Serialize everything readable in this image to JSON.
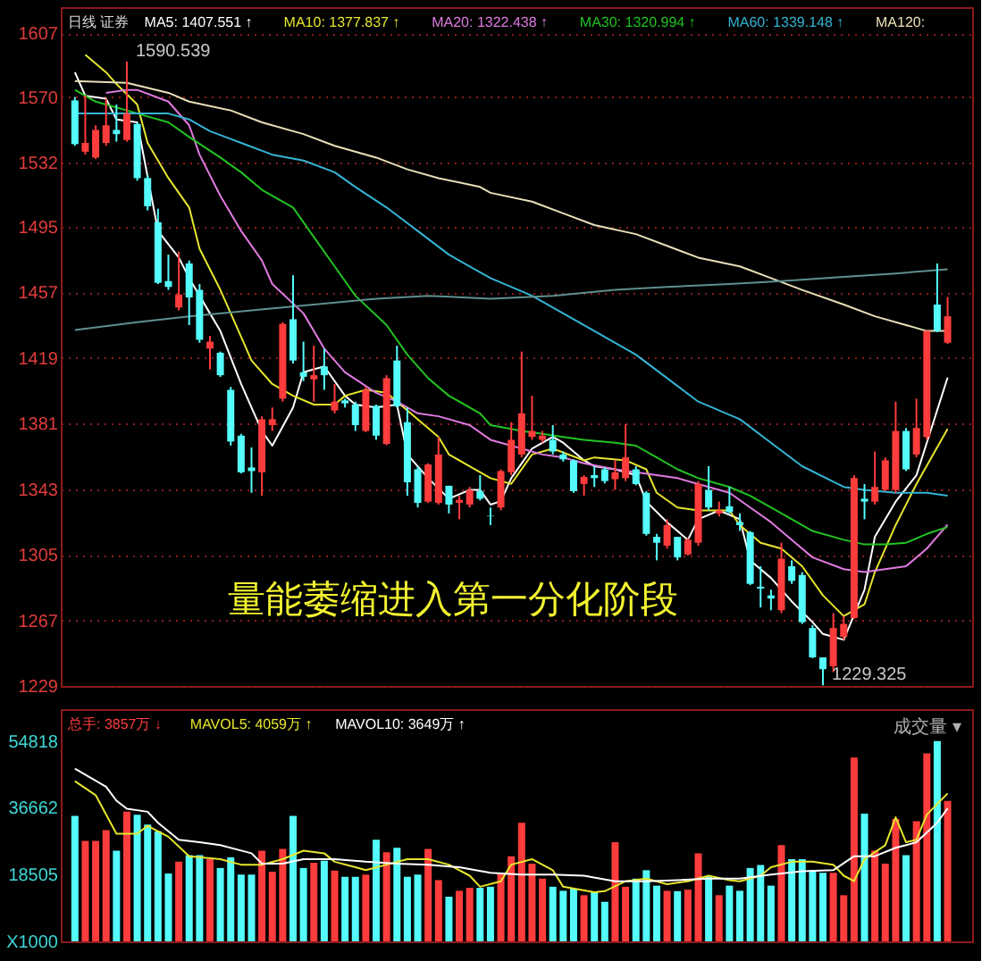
{
  "chart_data": [
    {
      "type": "candlestick",
      "title": "日线 证券",
      "grid": "y",
      "tick_labels": "y",
      "ylim": [
        1229,
        1622
      ],
      "yticks": [
        1229,
        1267,
        1305,
        1343,
        1381,
        1419,
        1457,
        1495,
        1532,
        1570,
        1607
      ],
      "categories": [
        null,
        null,
        null,
        null,
        null,
        null,
        null,
        null,
        null,
        null,
        null,
        null,
        null,
        null,
        null,
        null,
        null,
        null,
        null,
        null,
        null,
        null,
        null,
        null,
        null,
        null,
        null,
        null,
        null,
        null,
        null,
        null,
        null,
        null,
        null,
        null,
        null,
        null,
        null,
        null,
        null,
        null,
        null,
        null,
        null,
        null,
        null,
        null,
        null,
        null,
        null,
        null,
        null,
        null,
        null,
        null,
        null,
        null,
        null,
        null,
        null,
        null,
        null,
        null,
        null,
        null,
        null,
        null,
        null,
        null,
        null,
        null,
        null,
        null,
        null,
        null,
        null,
        null,
        null,
        null,
        null,
        null,
        null,
        null,
        null
      ],
      "ohlc": [
        [
          1568,
          1570,
          1541.7,
          1542.7
        ],
        [
          1538.3,
          1570.7,
          1536.6,
          1543.4
        ],
        [
          1534.9,
          1553.6,
          1534,
          1550.9
        ],
        [
          1543.4,
          1569,
          1541.7,
          1553.6
        ],
        [
          1550.9,
          1565.6,
          1544.1,
          1548.5
        ],
        [
          1545.1,
          1590.539,
          1544.1,
          1560.4
        ],
        [
          1554.3,
          1555.3,
          1521.5,
          1523
        ],
        [
          1523,
          1524.7,
          1504.3,
          1506.7
        ],
        [
          1497.5,
          1505.3,
          1461.7,
          1462.4
        ],
        [
          1463.4,
          1478.7,
          1458.3,
          1460
        ],
        [
          1448.1,
          1480.4,
          1446.4,
          1455.6
        ],
        [
          1473.6,
          1475.3,
          1437.9,
          1453.9
        ],
        [
          1458.3,
          1461.7,
          1427.7,
          1429.4
        ],
        [
          1424.3,
          1431.7,
          1412.3,
          1428.3
        ],
        [
          1421.9,
          1422.6,
          1407.9,
          1408.9
        ],
        [
          1400.4,
          1402.1,
          1368.1,
          1370.5
        ],
        [
          1373.9,
          1374.9,
          1352,
          1352.7
        ],
        [
          1355.5,
          1367.1,
          1340.8,
          1353.4
        ],
        [
          1352.7,
          1385.1,
          1339.1,
          1383.4
        ],
        [
          1380,
          1390.2,
          1376.6,
          1383.4
        ],
        [
          1395.3,
          1439.6,
          1393.6,
          1438.6
        ],
        [
          1441.3,
          1466.8,
          1415.7,
          1417.4
        ],
        [
          1410.6,
          1428.3,
          1405.5,
          1408
        ],
        [
          1406.5,
          1426,
          1393.6,
          1408.9
        ],
        [
          1414,
          1424.3,
          1400.4,
          1408.9
        ],
        [
          1388.5,
          1403.8,
          1386.8,
          1393.6
        ],
        [
          1394.3,
          1395.3,
          1390.2,
          1392.6
        ],
        [
          1391.9,
          1393.6,
          1376.6,
          1380
        ],
        [
          1376.6,
          1402.1,
          1375.9,
          1400.4
        ],
        [
          1391.2,
          1391.9,
          1371.5,
          1373.9
        ],
        [
          1369.1,
          1408.9,
          1368.4,
          1407.2
        ],
        [
          1417.4,
          1426,
          1390.2,
          1390.9
        ],
        [
          1381.7,
          1390.2,
          1339.1,
          1346.9
        ],
        [
          1354.4,
          1356.2,
          1332.3,
          1335
        ],
        [
          1335.7,
          1357.9,
          1335,
          1357.2
        ],
        [
          1335,
          1373.2,
          1334,
          1363
        ],
        [
          1344.9,
          1344.9,
          1328.9,
          1334
        ],
        [
          1335,
          1339.1,
          1325.5,
          1336.7
        ],
        [
          1334,
          1344.2,
          1332.3,
          1342.5
        ],
        [
          1341.8,
          1351,
          1336.4,
          1337.4
        ],
        [
          1327.5,
          1332.3,
          1322.1,
          1327.2
        ],
        [
          1332.3,
          1354.4,
          1330.6,
          1353.4
        ],
        [
          1352.7,
          1381.7,
          1351,
          1371.5
        ],
        [
          1363,
          1422.6,
          1361.3,
          1386.8
        ],
        [
          1373.2,
          1397,
          1371.5,
          1376.6
        ],
        [
          1371.5,
          1376.6,
          1369.8,
          1373.9
        ],
        [
          1371.5,
          1380,
          1363,
          1364.7
        ],
        [
          1363,
          1364.7,
          1358.9,
          1360.2
        ],
        [
          1359.6,
          1360.2,
          1340.8,
          1341.8
        ],
        [
          1345.9,
          1351,
          1339.1,
          1350
        ],
        [
          1351,
          1356.2,
          1344.2,
          1349.3
        ],
        [
          1354.4,
          1355.5,
          1346.2,
          1347.6
        ],
        [
          1348.7,
          1359.6,
          1342.5,
          1352.7
        ],
        [
          1349.3,
          1380.7,
          1347.6,
          1361.3
        ],
        [
          1354.4,
          1356.2,
          1345.2,
          1345.9
        ],
        [
          1340.8,
          1341.8,
          1316,
          1317
        ],
        [
          1315.3,
          1317,
          1301.7,
          1311.9
        ],
        [
          1310.2,
          1325.5,
          1308.5,
          1322.1
        ],
        [
          1315.3,
          1315.3,
          1301.7,
          1303.4
        ],
        [
          1305.1,
          1314.6,
          1304.4,
          1313.6
        ],
        [
          1311.9,
          1347.6,
          1310.2,
          1345.9
        ],
        [
          1342.5,
          1356.2,
          1330.6,
          1332.3
        ],
        [
          1328.9,
          1335.7,
          1327.2,
          1330.6
        ],
        [
          1333,
          1344.2,
          1328.9,
          1329.6
        ],
        [
          1323.8,
          1328.9,
          1318.7,
          1322.1
        ],
        [
          1318,
          1318.7,
          1287.4,
          1288.1
        ],
        [
          1286.4,
          1298.3,
          1274.4,
          1285.4
        ],
        [
          1281.4,
          1284.7,
          1272.8,
          1279.6
        ],
        [
          1272.8,
          1311.9,
          1271.1,
          1302.7
        ],
        [
          1298.3,
          1301.7,
          1288.1,
          1289.8
        ],
        [
          1293.2,
          1294.9,
          1264.9,
          1265.9
        ],
        [
          1262.5,
          1264.2,
          1245.1,
          1245.5
        ],
        [
          1245.5,
          1245.5,
          1229.325,
          1238.7
        ],
        [
          1240.4,
          1271.1,
          1237,
          1262.5
        ],
        [
          1257.4,
          1269.4,
          1255.7,
          1264.9
        ],
        [
          1268.3,
          1351,
          1267.7,
          1349.3
        ],
        [
          1337.4,
          1345.9,
          1325.5,
          1335.7
        ],
        [
          1335.7,
          1364.7,
          1334,
          1344.2
        ],
        [
          1342.5,
          1361.3,
          1341.8,
          1359.6
        ],
        [
          1342.5,
          1393.6,
          1340.8,
          1376.6
        ],
        [
          1376.6,
          1378.3,
          1353.4,
          1354.4
        ],
        [
          1363,
          1395.3,
          1361.3,
          1378.3
        ],
        [
          1373.2,
          1434.5,
          1371.5,
          1434.5
        ],
        [
          1449.8,
          1473.6,
          1433.8,
          1434.5
        ],
        [
          1427.7,
          1454.2,
          1427,
          1443
        ]
      ],
      "colors": [
        "#54fcfc",
        "#ff3c3c",
        "#ff3c3c",
        "#ff3c3c",
        "#54fcfc",
        "#ff3c3c",
        "#54fcfc",
        "#54fcfc",
        "#54fcfc",
        "#54fcfc",
        "#ff3c3c",
        "#54fcfc",
        "#54fcfc",
        "#ff3c3c",
        "#54fcfc",
        "#54fcfc",
        "#54fcfc",
        "#54fcfc",
        "#ff3c3c",
        "#ff3c3c",
        "#ff3c3c",
        "#54fcfc",
        "#54fcfc",
        "#ff3c3c",
        "#54fcfc",
        "#ff3c3c",
        "#54fcfc",
        "#54fcfc",
        "#ff3c3c",
        "#54fcfc",
        "#ff3c3c",
        "#54fcfc",
        "#54fcfc",
        "#54fcfc",
        "#ff3c3c",
        "#ff3c3c",
        "#54fcfc",
        "#ff3c3c",
        "#ff3c3c",
        "#54fcfc",
        "#54fcfc",
        "#ff3c3c",
        "#ff3c3c",
        "#ff3c3c",
        "#ff3c3c",
        "#ff3c3c",
        "#54fcfc",
        "#54fcfc",
        "#54fcfc",
        "#ff3c3c",
        "#54fcfc",
        "#54fcfc",
        "#ff3c3c",
        "#ff3c3c",
        "#54fcfc",
        "#54fcfc",
        "#54fcfc",
        "#ff3c3c",
        "#54fcfc",
        "#ff3c3c",
        "#ff3c3c",
        "#54fcfc",
        "#ff3c3c",
        "#54fcfc",
        "#54fcfc",
        "#54fcfc",
        "#54fcfc",
        "#54fcfc",
        "#ff3c3c",
        "#54fcfc",
        "#54fcfc",
        "#54fcfc",
        "#54fcfc",
        "#ff3c3c",
        "#ff3c3c",
        "#ff3c3c",
        "#54fcfc",
        "#ff3c3c",
        "#ff3c3c",
        "#ff3c3c",
        "#54fcfc",
        "#ff3c3c",
        "#ff3c3c",
        "#54fcfc",
        "#ff3c3c"
      ],
      "series": [
        {
          "name": "MA5: 1407.551 ↑",
          "type": "line",
          "color": "#ffffff",
          "values": [
            1584.3,
            1570.7,
            null,
            1569,
            1557,
            null,
            1555.3,
            null,
            1492.4,
            null,
            1477,
            1465.1,
            null,
            1444.7,
            1434.5,
            null,
            1403.8,
            null,
            1376.6,
            1368.1,
            null,
            1390.2,
            1410.6,
            null,
            1414,
            null,
            1397,
            1391.9,
            null,
            1390.2,
            null,
            1391.9,
            1363,
            null,
            1349.3,
            null,
            1337.4,
            null,
            1342.5,
            1342.5,
            1334,
            1336,
            1349.3,
            null,
            1366.4,
            null,
            1373.2,
            1369.8,
            null,
            1359.6,
            1356.2,
            null,
            1354.4,
            null,
            1351,
            1335.7,
            null,
            1323.8,
            null,
            1313.6,
            1325.5,
            null,
            1330.6,
            null,
            1325.5,
            1301.7,
            null,
            1291.5,
            null,
            1277.9,
            null,
            1265.9,
            1259.1,
            null,
            1255.7,
            null,
            1284.7,
            1315.3,
            null,
            1335.7,
            null,
            1351,
            null,
            null,
            1407.551
          ]
        },
        {
          "name": "MA10: 1377.837 ↑",
          "type": "line",
          "color": "#e6e62e",
          "values": [
            null,
            1594.5,
            null,
            1584.3,
            1577.5,
            null,
            1565.6,
            1543.4,
            null,
            1523,
            null,
            1506,
            1482.1,
            null,
            1458.3,
            null,
            1431.1,
            1417.4,
            null,
            1403.8,
            null,
            1397,
            null,
            1391.9,
            null,
            1391.9,
            1397,
            null,
            1400.4,
            null,
            1398.7,
            1393.6,
            null,
            1383.4,
            null,
            1373.2,
            1363,
            null,
            1356.2,
            null,
            1349.3,
            null,
            1346,
            null,
            1363,
            null,
            1366.4,
            null,
            null,
            1359.6,
            1361.3,
            null,
            null,
            1359.6,
            null,
            1354.4,
            1340.8,
            null,
            1332.3,
            null,
            1330.6,
            null,
            null,
            1330.6,
            1322.1,
            null,
            1311.9,
            null,
            1308.5,
            null,
            1298.3,
            null,
            1281.4,
            null,
            1269.4,
            null,
            1276.2,
            1294.9,
            null,
            1322.1,
            null,
            1345.9,
            null,
            null,
            1377.837
          ]
        },
        {
          "name": "MA20: 1322.438 ↑",
          "type": "line",
          "color": "#e07ae0",
          "values": [
            null,
            null,
            null,
            1572.4,
            null,
            1574.1,
            1574.1,
            null,
            null,
            1567.3,
            null,
            1553.6,
            1536.6,
            null,
            1512.8,
            null,
            1492.4,
            null,
            1475.3,
            1461.7,
            null,
            null,
            1444.7,
            null,
            1424.3,
            null,
            1410.6,
            null,
            null,
            1398.7,
            null,
            1393.6,
            null,
            1386.8,
            null,
            1385.1,
            null,
            null,
            1380,
            null,
            1371.5,
            null,
            null,
            1366.4,
            null,
            1363,
            null,
            1361.3,
            null,
            1357.9,
            null,
            null,
            1354.4,
            null,
            1352.7,
            null,
            1351,
            null,
            1349.3,
            null,
            1345.9,
            null,
            null,
            1340.8,
            null,
            1332.3,
            null,
            1323.8,
            null,
            1313.6,
            null,
            1303.4,
            null,
            null,
            1296.6,
            null,
            1294.9,
            null,
            1296.6,
            null,
            1298.3,
            null,
            1308.5,
            null,
            1322.438
          ]
        },
        {
          "name": "MA30: 1320.994 ↑",
          "type": "line",
          "color": "#22c322",
          "values": [
            1574.1,
            null,
            1567.3,
            null,
            null,
            1562.2,
            null,
            1558.7,
            null,
            1555.3,
            null,
            1546.8,
            null,
            null,
            1534.9,
            null,
            1526.4,
            null,
            1516.2,
            null,
            null,
            1506,
            null,
            1488.9,
            null,
            1471.9,
            null,
            1454.9,
            null,
            null,
            1437.9,
            null,
            1420.8,
            null,
            1407.2,
            null,
            1397,
            null,
            null,
            1386.8,
            1380,
            null,
            null,
            1376.6,
            null,
            1374.9,
            null,
            1373.2,
            null,
            1371.5,
            null,
            null,
            1369.8,
            null,
            1368.1,
            null,
            1361.3,
            null,
            1354.4,
            null,
            1349.3,
            null,
            null,
            1344.2,
            null,
            1339.1,
            null,
            1332.3,
            null,
            1325.5,
            null,
            1318.7,
            null,
            null,
            1313.6,
            null,
            1310.9,
            null,
            1310.9,
            null,
            1311.9,
            null,
            1317,
            null,
            1320.994
          ]
        },
        {
          "name": "MA60: 1339.148 ↑",
          "type": "line",
          "color": "#35b4d4",
          "values": [
            1560.4,
            null,
            null,
            1560.4,
            null,
            null,
            1560.4,
            null,
            null,
            1560.4,
            null,
            1557,
            null,
            1550.2,
            null,
            null,
            1543.4,
            null,
            null,
            1536.6,
            null,
            null,
            1533.2,
            null,
            null,
            1526.4,
            null,
            1517.9,
            null,
            null,
            1506,
            null,
            null,
            1492.4,
            null,
            null,
            1478.7,
            null,
            null,
            1468.5,
            1465.1,
            null,
            null,
            null,
            1454.9,
            null,
            null,
            1444.7,
            null,
            null,
            1434.5,
            null,
            null,
            null,
            1420.8,
            null,
            null,
            1407.2,
            null,
            null,
            1393.6,
            null,
            null,
            null,
            1383.4,
            null,
            null,
            1369.8,
            null,
            null,
            1356.2,
            null,
            null,
            null,
            1344.2,
            null,
            1342.5,
            null,
            null,
            1340.8,
            null,
            null,
            1340.8,
            null,
            1339.148
          ]
        },
        {
          "name": "MA120:",
          "type": "line",
          "color": "#e8e0b8",
          "values": [
            1579.2,
            null,
            null,
            null,
            null,
            1578.2,
            null,
            null,
            null,
            1572.4,
            null,
            1567.3,
            null,
            null,
            null,
            1562.2,
            null,
            null,
            1555.3,
            null,
            null,
            null,
            1548.5,
            null,
            null,
            1541.7,
            null,
            null,
            null,
            1534.9,
            null,
            null,
            1528.1,
            null,
            null,
            1523,
            null,
            null,
            null,
            1517.9,
            1514.5,
            null,
            null,
            null,
            1509.4,
            null,
            null,
            1502.6,
            null,
            null,
            1495.8,
            null,
            null,
            null,
            1490.6,
            null,
            null,
            1483.8,
            null,
            null,
            1477,
            null,
            null,
            null,
            1471.9,
            null,
            null,
            1465.1,
            null,
            null,
            1458.3,
            null,
            null,
            null,
            1449.8,
            null,
            null,
            1443,
            null,
            null,
            1437.9,
            null,
            1434.5,
            null,
            1434.5
          ]
        },
        {
          "type": "line",
          "color": "#5f8f8f",
          "values": [
            1435.1,
            null,
            null,
            null,
            null,
            null,
            1439.6,
            null,
            null,
            null,
            null,
            1443,
            null,
            null,
            null,
            null,
            null,
            1446.4,
            null,
            null,
            null,
            null,
            null,
            1449.8,
            null,
            null,
            null,
            null,
            null,
            1453.2,
            null,
            null,
            null,
            null,
            1454.9,
            null,
            null,
            null,
            null,
            null,
            1453.2,
            null,
            null,
            null,
            null,
            null,
            1454.9,
            null,
            null,
            null,
            null,
            null,
            1458.3,
            null,
            null,
            null,
            null,
            1460,
            null,
            null,
            null,
            null,
            null,
            1461.7,
            null,
            null,
            null,
            null,
            1463.4,
            null,
            null,
            null,
            null,
            null,
            1465.8,
            null,
            null,
            null,
            null,
            1467.8,
            null,
            null,
            null,
            null,
            1470.2
          ]
        }
      ],
      "annotations": [
        "1590.539",
        "1229.325",
        "量能萎缩进入第一分化阶段"
      ]
    },
    {
      "type": "bar",
      "tick_labels": "y",
      "ylim": [
        349,
        63500
      ],
      "yticks": [
        {
          "value": 349,
          "label": "X1000"
        },
        18505,
        36662,
        54818
      ],
      "categories": [
        null,
        null,
        null,
        null,
        null,
        null,
        null,
        null,
        null,
        null,
        null,
        null,
        null,
        null,
        null,
        null,
        null,
        null,
        null,
        null,
        null,
        null,
        null,
        null,
        null,
        null,
        null,
        null,
        null,
        null,
        null,
        null,
        null,
        null,
        null,
        null,
        null,
        null,
        null,
        null,
        null,
        null,
        null,
        null,
        null,
        null,
        null,
        null,
        null,
        null,
        null,
        null,
        null,
        null,
        null,
        null,
        null,
        null,
        null,
        null,
        null,
        null,
        null,
        null,
        null,
        null,
        null,
        null,
        null,
        null,
        null,
        null,
        null,
        null,
        null,
        null,
        null,
        null,
        null,
        null,
        null,
        null,
        null,
        null,
        null
      ],
      "series": [
        {
          "name": "总手: 3857万 ↓",
          "type": "bar",
          "color": "#ff3c3c",
          "colors": [
            "#54fcfc",
            "#ff3c3c",
            "#ff3c3c",
            "#ff3c3c",
            "#54fcfc",
            "#ff3c3c",
            "#54fcfc",
            "#54fcfc",
            "#54fcfc",
            "#54fcfc",
            "#ff3c3c",
            "#54fcfc",
            "#54fcfc",
            "#ff3c3c",
            "#54fcfc",
            "#54fcfc",
            "#54fcfc",
            "#54fcfc",
            "#ff3c3c",
            "#ff3c3c",
            "#ff3c3c",
            "#54fcfc",
            "#54fcfc",
            "#ff3c3c",
            "#54fcfc",
            "#ff3c3c",
            "#54fcfc",
            "#54fcfc",
            "#ff3c3c",
            "#54fcfc",
            "#ff3c3c",
            "#54fcfc",
            "#54fcfc",
            "#54fcfc",
            "#ff3c3c",
            "#ff3c3c",
            "#54fcfc",
            "#ff3c3c",
            "#ff3c3c",
            "#54fcfc",
            "#54fcfc",
            "#ff3c3c",
            "#ff3c3c",
            "#ff3c3c",
            "#ff3c3c",
            "#ff3c3c",
            "#54fcfc",
            "#54fcfc",
            "#54fcfc",
            "#ff3c3c",
            "#54fcfc",
            "#54fcfc",
            "#ff3c3c",
            "#ff3c3c",
            "#54fcfc",
            "#54fcfc",
            "#54fcfc",
            "#ff3c3c",
            "#54fcfc",
            "#ff3c3c",
            "#ff3c3c",
            "#54fcfc",
            "#ff3c3c",
            "#54fcfc",
            "#54fcfc",
            "#54fcfc",
            "#54fcfc",
            "#54fcfc",
            "#ff3c3c",
            "#54fcfc",
            "#54fcfc",
            "#54fcfc",
            "#54fcfc",
            "#ff3c3c",
            "#ff3c3c",
            "#ff3c3c",
            "#54fcfc",
            "#ff3c3c",
            "#ff3c3c",
            "#ff3c3c",
            "#54fcfc",
            "#ff3c3c",
            "#ff3c3c",
            "#54fcfc",
            "#ff3c3c"
          ],
          "values": [
            34500,
            27700,
            27700,
            30600,
            25000,
            35600,
            34800,
            32100,
            30300,
            18800,
            22000,
            23800,
            23800,
            22700,
            20300,
            23200,
            18500,
            18500,
            25000,
            19300,
            25500,
            34500,
            20300,
            21700,
            22300,
            19600,
            17900,
            17900,
            18500,
            28000,
            24600,
            25800,
            17900,
            18500,
            25500,
            17000,
            12500,
            14100,
            14900,
            14900,
            15200,
            19000,
            23500,
            32600,
            21500,
            17400,
            15200,
            14100,
            14700,
            12900,
            13700,
            11100,
            27300,
            15200,
            17400,
            19700,
            15500,
            14100,
            14000,
            14400,
            24300,
            17900,
            12900,
            15500,
            14100,
            20300,
            21100,
            15500,
            26500,
            22700,
            22700,
            19700,
            19000,
            19000,
            12900,
            50300,
            35100,
            25000,
            21500,
            33600,
            23800,
            33000,
            51500,
            54818,
            38570
          ]
        },
        {
          "name": "MAVOL5: 4059万 ↑",
          "type": "line",
          "color": "#e6e62e",
          "values": [
            43900,
            null,
            40100,
            null,
            29600,
            null,
            29600,
            31800,
            null,
            28800,
            null,
            23500,
            null,
            null,
            22700,
            null,
            21200,
            null,
            21200,
            null,
            22700,
            null,
            25000,
            null,
            24300,
            22000,
            null,
            20500,
            19700,
            null,
            21200,
            null,
            22700,
            null,
            22700,
            null,
            21200,
            null,
            18200,
            15200,
            null,
            16700,
            21200,
            null,
            22700,
            null,
            19700,
            15200,
            null,
            null,
            13700,
            14000,
            null,
            16700,
            null,
            17400,
            null,
            15900,
            null,
            16700,
            null,
            18200,
            null,
            17000,
            16700,
            null,
            18200,
            20500,
            null,
            22000,
            null,
            22000,
            null,
            21200,
            18200,
            16700,
            22700,
            null,
            26500,
            34100,
            27300,
            28000,
            34800,
            null,
            40590
          ]
        },
        {
          "name": "MAVOL10: 3649万 ↑",
          "type": "line",
          "color": "#ffffff",
          "values": [
            47300,
            null,
            null,
            42400,
            38600,
            36400,
            null,
            35600,
            32600,
            null,
            28000,
            null,
            27300,
            null,
            26500,
            null,
            null,
            24300,
            21500,
            null,
            21500,
            null,
            22700,
            null,
            null,
            22700,
            null,
            null,
            22000,
            null,
            null,
            21500,
            null,
            null,
            21200,
            null,
            null,
            20500,
            null,
            null,
            19000,
            null,
            null,
            18500,
            null,
            null,
            18500,
            null,
            null,
            18200,
            null,
            null,
            16700,
            null,
            null,
            16700,
            null,
            null,
            17000,
            null,
            null,
            17400,
            null,
            null,
            17400,
            null,
            null,
            18500,
            null,
            null,
            19400,
            null,
            null,
            19700,
            null,
            23500,
            null,
            23500,
            null,
            25800,
            26500,
            27300,
            null,
            32600,
            36490
          ]
        }
      ],
      "annotations": [
        "成交量 ▾"
      ]
    }
  ]
}
